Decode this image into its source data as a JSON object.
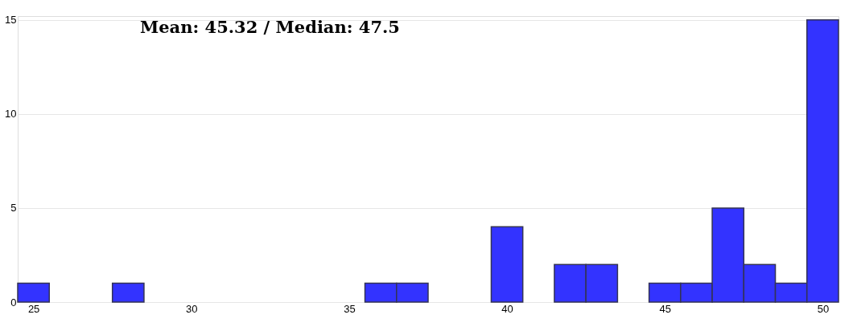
{
  "chart_data": {
    "type": "histogram",
    "bins": [
      24.5,
      25.5,
      26.5,
      27.5,
      28.5,
      29.5,
      30.5,
      31.5,
      32.5,
      33.5,
      34.5,
      35.5,
      36.5,
      37.5,
      38.5,
      39.5,
      40.5,
      41.5,
      42.5,
      43.5,
      44.5,
      45.5,
      46.5,
      47.5,
      48.5,
      49.5,
      50.5
    ],
    "values": [
      1,
      0,
      0,
      1,
      0,
      0,
      0,
      0,
      0,
      0,
      0,
      1,
      1,
      0,
      0,
      4,
      0,
      2,
      2,
      0,
      1,
      1,
      5,
      2,
      1,
      15
    ],
    "color": "#3333ff",
    "xlim": [
      24.5,
      50.5
    ],
    "xticks": [
      25,
      30,
      35,
      40,
      45,
      50
    ],
    "ylim": [
      0,
      15.2
    ],
    "yticks": [
      0,
      5,
      10,
      15
    ],
    "grid": "y",
    "annotations": [
      "Mean: 45.32 / Median: 47.5"
    ]
  }
}
